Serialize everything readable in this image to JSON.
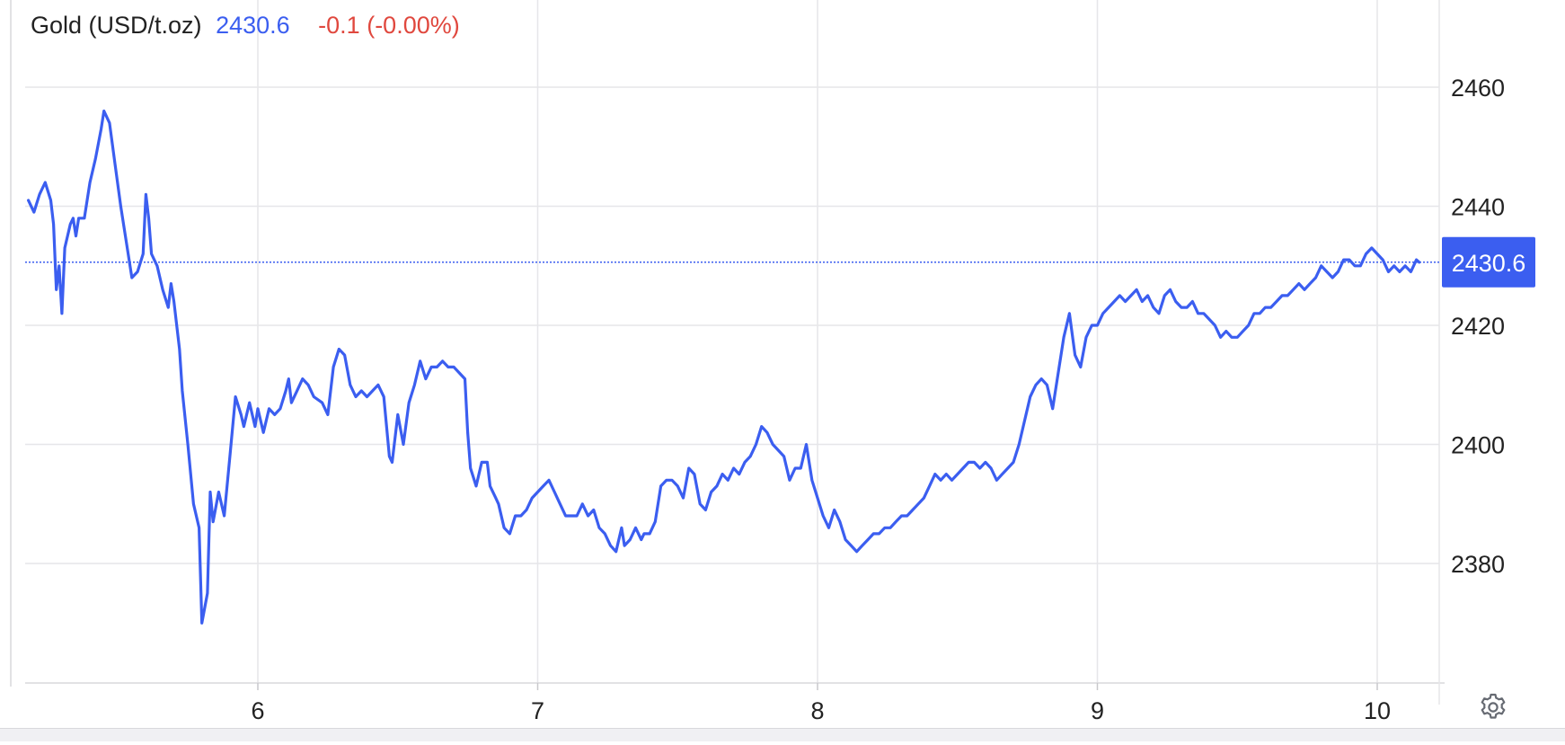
{
  "header": {
    "instrument": "Gold (USD/t.oz)",
    "price": "2430.6",
    "change": "-0.1 (-0.00%)"
  },
  "colors": {
    "line": "#3b5ef0",
    "grid": "#e6e6e9",
    "price_tag_bg": "#3b5ef0",
    "change_negative": "#e0483e"
  },
  "icons": {
    "settings": "gear-icon"
  },
  "chart_data": {
    "type": "line",
    "title": "Gold (USD/t.oz)",
    "xlabel": "",
    "ylabel": "",
    "x_ticks": [
      6,
      7,
      8,
      9,
      10
    ],
    "x_tick_labels": [
      "6",
      "7",
      "8",
      "9",
      "10"
    ],
    "y_ticks": [
      2380,
      2400,
      2420,
      2440,
      2460
    ],
    "y_tick_labels": [
      "2380",
      "2400",
      "2420",
      "2440",
      "2460"
    ],
    "xlim": [
      5.18,
      10.25
    ],
    "ylim": [
      2360,
      2470
    ],
    "grid": true,
    "y_axis_side": "right",
    "current_price": 2430.6,
    "current_price_label": "2430.6",
    "series": [
      {
        "values": [
          [
            5.18,
            2441
          ],
          [
            5.2,
            2439
          ],
          [
            5.22,
            2442
          ],
          [
            5.24,
            2444
          ],
          [
            5.26,
            2441
          ],
          [
            5.27,
            2437
          ],
          [
            5.28,
            2426
          ],
          [
            5.29,
            2430
          ],
          [
            5.3,
            2422
          ],
          [
            5.31,
            2433
          ],
          [
            5.33,
            2437
          ],
          [
            5.34,
            2438
          ],
          [
            5.35,
            2435
          ],
          [
            5.36,
            2438
          ],
          [
            5.38,
            2438
          ],
          [
            5.4,
            2444
          ],
          [
            5.42,
            2448
          ],
          [
            5.44,
            2453
          ],
          [
            5.45,
            2456
          ],
          [
            5.47,
            2454
          ],
          [
            5.49,
            2447
          ],
          [
            5.51,
            2440
          ],
          [
            5.53,
            2434
          ],
          [
            5.55,
            2428
          ],
          [
            5.57,
            2429
          ],
          [
            5.59,
            2432
          ],
          [
            5.6,
            2442
          ],
          [
            5.61,
            2438
          ],
          [
            5.62,
            2432
          ],
          [
            5.64,
            2430
          ],
          [
            5.66,
            2426
          ],
          [
            5.68,
            2423
          ],
          [
            5.69,
            2427
          ],
          [
            5.7,
            2424
          ],
          [
            5.72,
            2416
          ],
          [
            5.73,
            2409
          ],
          [
            5.75,
            2400
          ],
          [
            5.77,
            2390
          ],
          [
            5.79,
            2386
          ],
          [
            5.8,
            2370
          ],
          [
            5.82,
            2375
          ],
          [
            5.83,
            2392
          ],
          [
            5.84,
            2387
          ],
          [
            5.86,
            2392
          ],
          [
            5.88,
            2388
          ],
          [
            5.9,
            2398
          ],
          [
            5.92,
            2408
          ],
          [
            5.94,
            2405
          ],
          [
            5.95,
            2403
          ],
          [
            5.97,
            2407
          ],
          [
            5.99,
            2403
          ],
          [
            6.0,
            2406
          ],
          [
            6.02,
            2402
          ],
          [
            6.04,
            2406
          ],
          [
            6.06,
            2405
          ],
          [
            6.08,
            2406
          ],
          [
            6.1,
            2409
          ],
          [
            6.11,
            2411
          ],
          [
            6.12,
            2407
          ],
          [
            6.14,
            2409
          ],
          [
            6.16,
            2411
          ],
          [
            6.18,
            2410
          ],
          [
            6.2,
            2408
          ],
          [
            6.23,
            2407
          ],
          [
            6.25,
            2405
          ],
          [
            6.27,
            2413
          ],
          [
            6.29,
            2416
          ],
          [
            6.31,
            2415
          ],
          [
            6.33,
            2410
          ],
          [
            6.35,
            2408
          ],
          [
            6.37,
            2409
          ],
          [
            6.39,
            2408
          ],
          [
            6.41,
            2409
          ],
          [
            6.43,
            2410
          ],
          [
            6.45,
            2408
          ],
          [
            6.47,
            2398
          ],
          [
            6.48,
            2397
          ],
          [
            6.5,
            2405
          ],
          [
            6.52,
            2400
          ],
          [
            6.54,
            2407
          ],
          [
            6.56,
            2410
          ],
          [
            6.58,
            2414
          ],
          [
            6.6,
            2411
          ],
          [
            6.62,
            2413
          ],
          [
            6.64,
            2413
          ],
          [
            6.66,
            2414
          ],
          [
            6.68,
            2413
          ],
          [
            6.7,
            2413
          ],
          [
            6.72,
            2412
          ],
          [
            6.74,
            2411
          ],
          [
            6.75,
            2402
          ],
          [
            6.76,
            2396
          ],
          [
            6.78,
            2393
          ],
          [
            6.8,
            2397
          ],
          [
            6.82,
            2397
          ],
          [
            6.83,
            2393
          ],
          [
            6.85,
            2391
          ],
          [
            6.86,
            2390
          ],
          [
            6.88,
            2386
          ],
          [
            6.9,
            2385
          ],
          [
            6.92,
            2388
          ],
          [
            6.94,
            2388
          ],
          [
            6.96,
            2389
          ],
          [
            6.98,
            2391
          ],
          [
            7.0,
            2392
          ],
          [
            7.02,
            2393
          ],
          [
            7.04,
            2394
          ],
          [
            7.06,
            2392
          ],
          [
            7.08,
            2390
          ],
          [
            7.1,
            2388
          ],
          [
            7.12,
            2388
          ],
          [
            7.14,
            2388
          ],
          [
            7.16,
            2390
          ],
          [
            7.18,
            2388
          ],
          [
            7.2,
            2389
          ],
          [
            7.22,
            2386
          ],
          [
            7.24,
            2385
          ],
          [
            7.26,
            2383
          ],
          [
            7.28,
            2382
          ],
          [
            7.3,
            2386
          ],
          [
            7.31,
            2383
          ],
          [
            7.33,
            2384
          ],
          [
            7.35,
            2386
          ],
          [
            7.37,
            2384
          ],
          [
            7.38,
            2385
          ],
          [
            7.4,
            2385
          ],
          [
            7.42,
            2387
          ],
          [
            7.44,
            2393
          ],
          [
            7.46,
            2394
          ],
          [
            7.48,
            2394
          ],
          [
            7.5,
            2393
          ],
          [
            7.52,
            2391
          ],
          [
            7.54,
            2396
          ],
          [
            7.56,
            2395
          ],
          [
            7.58,
            2390
          ],
          [
            7.6,
            2389
          ],
          [
            7.62,
            2392
          ],
          [
            7.64,
            2393
          ],
          [
            7.66,
            2395
          ],
          [
            7.68,
            2394
          ],
          [
            7.7,
            2396
          ],
          [
            7.72,
            2395
          ],
          [
            7.74,
            2397
          ],
          [
            7.76,
            2398
          ],
          [
            7.78,
            2400
          ],
          [
            7.8,
            2403
          ],
          [
            7.82,
            2402
          ],
          [
            7.84,
            2400
          ],
          [
            7.86,
            2399
          ],
          [
            7.88,
            2398
          ],
          [
            7.9,
            2394
          ],
          [
            7.92,
            2396
          ],
          [
            7.94,
            2396
          ],
          [
            7.96,
            2400
          ],
          [
            7.98,
            2394
          ],
          [
            8.0,
            2391
          ],
          [
            8.02,
            2388
          ],
          [
            8.04,
            2386
          ],
          [
            8.06,
            2389
          ],
          [
            8.08,
            2387
          ],
          [
            8.1,
            2384
          ],
          [
            8.12,
            2383
          ],
          [
            8.14,
            2382
          ],
          [
            8.16,
            2383
          ],
          [
            8.18,
            2384
          ],
          [
            8.2,
            2385
          ],
          [
            8.22,
            2385
          ],
          [
            8.24,
            2386
          ],
          [
            8.26,
            2386
          ],
          [
            8.28,
            2387
          ],
          [
            8.3,
            2388
          ],
          [
            8.32,
            2388
          ],
          [
            8.34,
            2389
          ],
          [
            8.36,
            2390
          ],
          [
            8.38,
            2391
          ],
          [
            8.4,
            2393
          ],
          [
            8.42,
            2395
          ],
          [
            8.44,
            2394
          ],
          [
            8.46,
            2395
          ],
          [
            8.48,
            2394
          ],
          [
            8.5,
            2395
          ],
          [
            8.52,
            2396
          ],
          [
            8.54,
            2397
          ],
          [
            8.56,
            2397
          ],
          [
            8.58,
            2396
          ],
          [
            8.6,
            2397
          ],
          [
            8.62,
            2396
          ],
          [
            8.64,
            2394
          ],
          [
            8.66,
            2395
          ],
          [
            8.68,
            2396
          ],
          [
            8.7,
            2397
          ],
          [
            8.72,
            2400
          ],
          [
            8.74,
            2404
          ],
          [
            8.76,
            2408
          ],
          [
            8.78,
            2410
          ],
          [
            8.8,
            2411
          ],
          [
            8.82,
            2410
          ],
          [
            8.84,
            2406
          ],
          [
            8.86,
            2412
          ],
          [
            8.88,
            2418
          ],
          [
            8.9,
            2422
          ],
          [
            8.92,
            2415
          ],
          [
            8.94,
            2413
          ],
          [
            8.96,
            2418
          ],
          [
            8.98,
            2420
          ],
          [
            9.0,
            2420
          ],
          [
            9.02,
            2422
          ],
          [
            9.04,
            2423
          ],
          [
            9.06,
            2424
          ],
          [
            9.08,
            2425
          ],
          [
            9.1,
            2424
          ],
          [
            9.12,
            2425
          ],
          [
            9.14,
            2426
          ],
          [
            9.16,
            2424
          ],
          [
            9.18,
            2425
          ],
          [
            9.2,
            2423
          ],
          [
            9.22,
            2422
          ],
          [
            9.24,
            2425
          ],
          [
            9.26,
            2426
          ],
          [
            9.28,
            2424
          ],
          [
            9.3,
            2423
          ],
          [
            9.32,
            2423
          ],
          [
            9.34,
            2424
          ],
          [
            9.36,
            2422
          ],
          [
            9.38,
            2422
          ],
          [
            9.4,
            2421
          ],
          [
            9.42,
            2420
          ],
          [
            9.44,
            2418
          ],
          [
            9.46,
            2419
          ],
          [
            9.48,
            2418
          ],
          [
            9.5,
            2418
          ],
          [
            9.52,
            2419
          ],
          [
            9.54,
            2420
          ],
          [
            9.56,
            2422
          ],
          [
            9.58,
            2422
          ],
          [
            9.6,
            2423
          ],
          [
            9.62,
            2423
          ],
          [
            9.64,
            2424
          ],
          [
            9.66,
            2425
          ],
          [
            9.68,
            2425
          ],
          [
            9.7,
            2426
          ],
          [
            9.72,
            2427
          ],
          [
            9.74,
            2426
          ],
          [
            9.76,
            2427
          ],
          [
            9.78,
            2428
          ],
          [
            9.8,
            2430
          ],
          [
            9.82,
            2429
          ],
          [
            9.84,
            2428
          ],
          [
            9.86,
            2429
          ],
          [
            9.88,
            2431
          ],
          [
            9.9,
            2431
          ],
          [
            9.92,
            2430
          ],
          [
            9.94,
            2430
          ],
          [
            9.96,
            2432
          ],
          [
            9.98,
            2433
          ],
          [
            10.0,
            2432
          ],
          [
            10.02,
            2431
          ],
          [
            10.04,
            2429
          ],
          [
            10.06,
            2430
          ],
          [
            10.08,
            2429
          ],
          [
            10.1,
            2430
          ],
          [
            10.12,
            2429
          ],
          [
            10.14,
            2431
          ],
          [
            10.15,
            2430.6
          ]
        ]
      }
    ]
  }
}
